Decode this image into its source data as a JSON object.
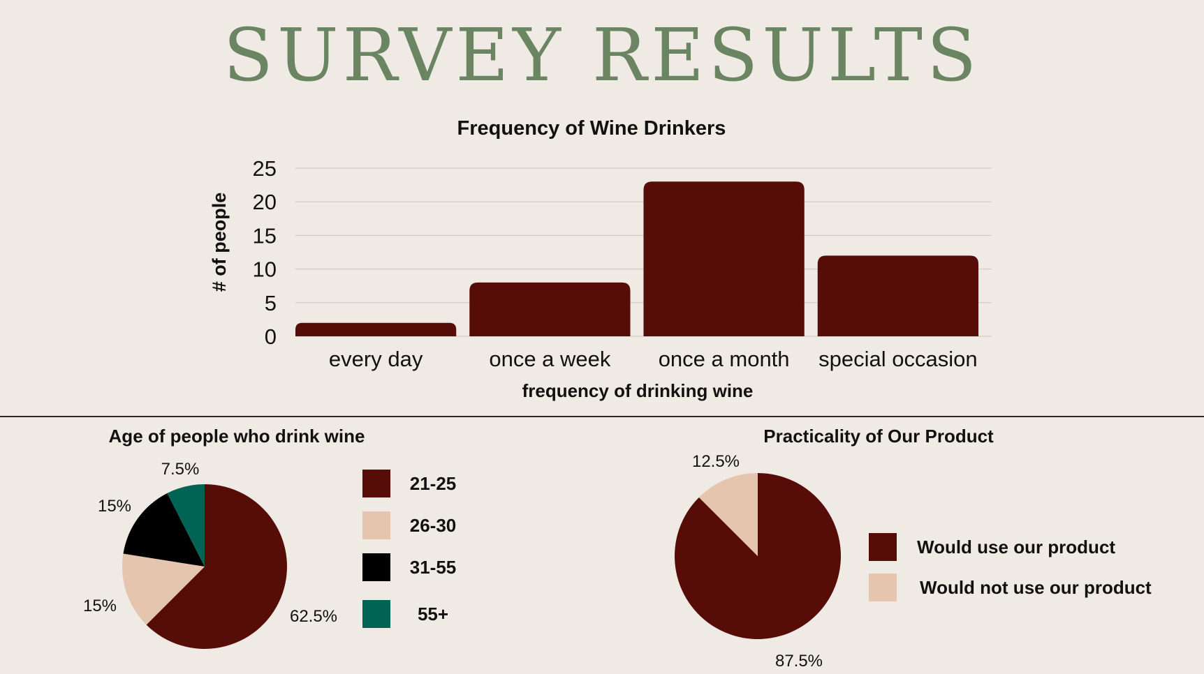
{
  "page": {
    "title": "SURVEY RESULTS"
  },
  "chart_data": [
    {
      "type": "bar",
      "title": "Frequency of Wine Drinkers",
      "xlabel": "frequency of drinking wine",
      "ylabel": "# of people",
      "categories": [
        "every day",
        "once a week",
        "once a month",
        "special occasion"
      ],
      "values": [
        2,
        8,
        23,
        12
      ],
      "yticks": [
        0,
        5,
        10,
        15,
        20,
        25
      ],
      "ylim": [
        0,
        25
      ],
      "grid": true,
      "color": "#560c07"
    },
    {
      "type": "pie",
      "title": "Age of people who drink wine",
      "labels": [
        "21-25",
        "26-30",
        "31-55",
        "55+"
      ],
      "values": [
        62.5,
        15,
        15,
        7.5
      ],
      "value_labels": [
        "62.5%",
        "15%",
        "15%",
        "7.5%"
      ],
      "colors": [
        "#560c07",
        "#e5c5ad",
        "#000000",
        "#006455"
      ],
      "legend": "right"
    },
    {
      "type": "pie",
      "title": "Practicality of Our Product",
      "labels": [
        "Would use our product",
        "Would not use our product"
      ],
      "values": [
        87.5,
        12.5
      ],
      "value_labels": [
        "87.5%",
        "12.5%"
      ],
      "colors": [
        "#560c07",
        "#e5c5ad"
      ],
      "legend": "right"
    }
  ]
}
